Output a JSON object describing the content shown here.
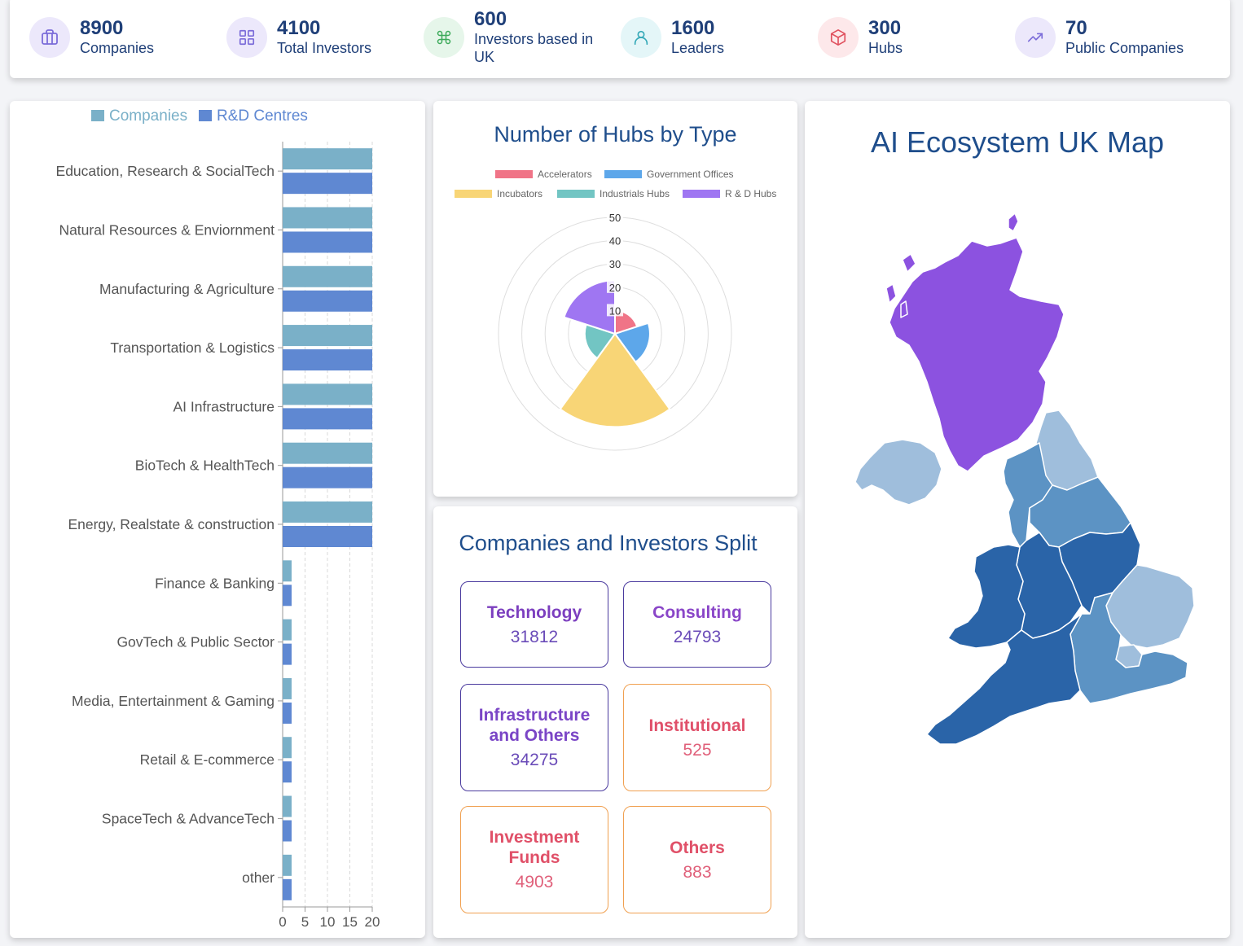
{
  "stats": [
    {
      "value": "8900",
      "label": "Companies",
      "icon": "briefcase-icon",
      "bg": "#ece8fb",
      "fg": "#7b6cd9"
    },
    {
      "value": "4100",
      "label": "Total Investors",
      "icon": "grid-icon",
      "bg": "#ece8fb",
      "fg": "#7b6cd9"
    },
    {
      "value": "600",
      "label_lines": [
        "Investors based in",
        "UK"
      ],
      "icon": "command-icon",
      "bg": "#e6f6ea",
      "fg": "#3caa5a"
    },
    {
      "value": "1600",
      "label": "Leaders",
      "icon": "user-icon",
      "bg": "#e4f6f8",
      "fg": "#35a9b8"
    },
    {
      "value": "300",
      "label": "Hubs",
      "icon": "box-icon",
      "bg": "#fde8ea",
      "fg": "#e0505e"
    },
    {
      "value": "70",
      "label": "Public Companies",
      "icon": "trending-up-icon",
      "bg": "#ece8fb",
      "fg": "#7b6cd9"
    }
  ],
  "sector_chart": {
    "chart_data": {
      "type": "bar",
      "orientation": "horizontal",
      "legend_position": "top",
      "categories": [
        "Education, Research & SocialTech",
        "Natural Resources & Enviornment",
        "Manufacturing & Agriculture",
        "Transportation & Logistics",
        "AI Infrastructure",
        "BioTech & HealthTech",
        "Energy, Realstate & construction",
        "Finance & Banking",
        "GovTech & Public Sector",
        "Media, Entertainment & Gaming",
        "Retail & E-commerce",
        "SpaceTech & AdvanceTech",
        "other"
      ],
      "series": [
        {
          "name": "Companies",
          "color": "#7ab0c8",
          "values": [
            20,
            20,
            20,
            20,
            20,
            20,
            20,
            2,
            2,
            2,
            2,
            2,
            2
          ]
        },
        {
          "name": "R&D Centres",
          "color": "#5f88d2",
          "values": [
            20,
            20,
            20,
            20,
            20,
            20,
            20,
            2,
            2,
            2,
            2,
            2,
            2
          ]
        }
      ],
      "xlim": [
        0,
        20
      ],
      "xticks": [
        "0",
        "5",
        "10",
        "15",
        "20"
      ],
      "grid": true
    }
  },
  "hubs_chart": {
    "title": "Number of Hubs by Type",
    "chart_data": {
      "type": "polarArea",
      "legend_position": "top",
      "categories": [
        "Accelerators",
        "Government Offices",
        "Incubators",
        "Industrials Hubs",
        "R & D Hubs"
      ],
      "values": [
        10,
        15,
        40,
        13,
        23
      ],
      "colors": [
        "#f07487",
        "#5da7ea",
        "#f8d576",
        "#72c5c3",
        "#9f76f2"
      ],
      "r_max": 50,
      "r_ticks": [
        "10",
        "20",
        "30",
        "40",
        "50"
      ]
    }
  },
  "split": {
    "title": "Companies and Investors Split",
    "boxes": [
      {
        "lines": [
          "Technology"
        ],
        "value": "31812",
        "name_color": "#7c3fbf",
        "value_color": "#6a4bb8",
        "border": "#4a3a9e"
      },
      {
        "lines": [
          "Consulting"
        ],
        "value": "24793",
        "name_color": "#8a46c8",
        "value_color": "#6a4bb8",
        "border": "#4a3a9e"
      },
      {
        "lines": [
          "Infrastructure",
          "and Others"
        ],
        "value": "34275",
        "name_color": "#7a45c6",
        "value_color": "#6a4bb8",
        "border": "#4a3a9e"
      },
      {
        "lines": [
          "Institutional"
        ],
        "value": "525",
        "name_color": "#e0506a",
        "value_color": "#e0607a",
        "border": "#f0a050"
      },
      {
        "lines": [
          "Investment",
          "Funds"
        ],
        "value": "4903",
        "name_color": "#e05068",
        "value_color": "#e0607a",
        "border": "#f0a050"
      },
      {
        "lines": [
          "Others"
        ],
        "value": "883",
        "name_color": "#e05068",
        "value_color": "#e0607a",
        "border": "#f0a050"
      }
    ]
  },
  "map": {
    "title": "AI Ecosystem UK Map",
    "region_colors": {
      "scotland": "#8c52e0",
      "northern_ireland": "#9fbedc",
      "north_east": "#9fbedc",
      "north_west": "#5c93c4",
      "yorkshire": "#5c93c4",
      "wales": "#2a64a8",
      "west_midlands": "#2a64a8",
      "east_midlands": "#2a64a8",
      "east_of_england": "#9fbedc",
      "south_west": "#2a64a8",
      "south_east": "#5c93c4",
      "london": "#9fbedc"
    }
  }
}
